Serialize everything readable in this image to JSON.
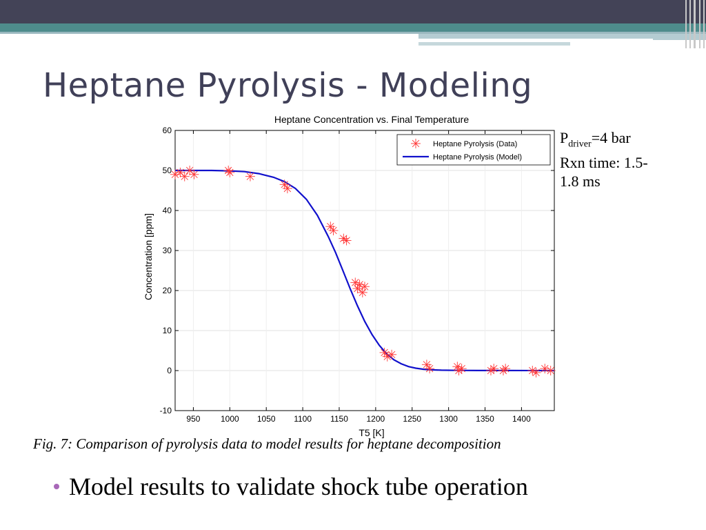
{
  "slide": {
    "title": "Heptane Pyrolysis - Modeling",
    "conditions": {
      "p_prefix": "P",
      "p_sub": "driver",
      "p_value": "=4 bar",
      "rxn_line1": "Rxn time: 1.5-",
      "rxn_line2": "1.8 ms"
    },
    "caption": "Fig. 7: Comparison of pyrolysis data to model results for heptane decomposition",
    "bullet": "Model results to validate shock tube operation",
    "colors": {
      "header_dark": "#434357",
      "header_teal": "#4e8c8c",
      "title_text": "#404058",
      "bullet_dot": "#a868b8"
    }
  },
  "chart_data": {
    "type": "scatter",
    "title": "Heptane Concentration vs. Final Temperature",
    "xlabel": "T5 [K]",
    "ylabel": "Concentration [ppm]",
    "xlim": [
      925,
      1445
    ],
    "ylim": [
      -10,
      60
    ],
    "xticks": [
      950,
      1000,
      1050,
      1100,
      1150,
      1200,
      1250,
      1300,
      1350,
      1400
    ],
    "yticks": [
      -10,
      0,
      10,
      20,
      30,
      40,
      50,
      60
    ],
    "grid": true,
    "legend_position": "top-right",
    "series": [
      {
        "name": "Heptane Pyrolysis (Data)",
        "style": "star-marker",
        "color": "#ff3333",
        "x": [
          925,
          932,
          938,
          945,
          951,
          998,
          1000,
          1028,
          1075,
          1079,
          1138,
          1142,
          1156,
          1160,
          1172,
          1175,
          1178,
          1182,
          1185,
          1212,
          1216,
          1222,
          1270,
          1274,
          1312,
          1314,
          1318,
          1358,
          1362,
          1375,
          1378,
          1415,
          1420,
          1432,
          1440
        ],
        "y": [
          49,
          49.5,
          48.5,
          50,
          49,
          50,
          49.5,
          48.5,
          46.5,
          45.5,
          36,
          35,
          33,
          32.5,
          22,
          20.5,
          21.5,
          19.5,
          21,
          4.5,
          3.5,
          4,
          1.5,
          0.5,
          1,
          0,
          0.5,
          0,
          0.5,
          0,
          0.5,
          0,
          -0.5,
          0.5,
          0
        ]
      },
      {
        "name": "Heptane Pyrolysis (Model)",
        "style": "line",
        "color": "#1010cc",
        "x": [
          925,
          950,
          975,
          1000,
          1020,
          1040,
          1060,
          1075,
          1090,
          1105,
          1120,
          1135,
          1145,
          1155,
          1165,
          1175,
          1185,
          1195,
          1205,
          1215,
          1225,
          1235,
          1245,
          1255,
          1265,
          1275,
          1290,
          1310,
          1340,
          1380,
          1445
        ],
        "y": [
          50,
          50,
          50,
          49.9,
          49.7,
          49.2,
          48.3,
          47.2,
          45.5,
          42.8,
          38.8,
          33.5,
          29.5,
          25,
          20.5,
          16.2,
          12.3,
          9,
          6.3,
          4.2,
          2.7,
          1.7,
          1,
          0.6,
          0.35,
          0.2,
          0.1,
          0.05,
          0.02,
          0.01,
          0
        ]
      }
    ]
  }
}
